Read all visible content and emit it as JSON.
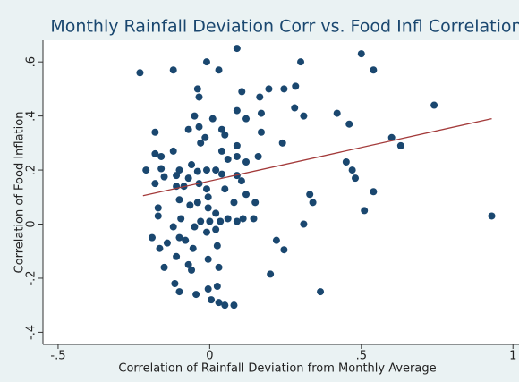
{
  "chart_data": {
    "type": "scatter",
    "title": "Monthly Rainfall Deviation Corr vs. Food Infl Correlation",
    "x_label": "Correlation of Rainfall Deviation from Monthly Average",
    "y_label": "Correlation of Food Inflation",
    "color": "#1a476f",
    "x": [
      -0.23,
      0.09,
      -0.01,
      0.03,
      -0.12,
      0.3,
      0.5,
      0.54,
      0.74,
      -0.04,
      -0.035,
      0.106,
      0.165,
      0.195,
      0.245,
      0.283,
      0.28,
      0.31,
      0.12,
      -0.05,
      0.01,
      0.04,
      0.09,
      -0.035,
      -0.015,
      -0.07,
      0.05,
      -0.18,
      0.17,
      0.24,
      0.42,
      0.46,
      0.6,
      0.63,
      0.33,
      0.34,
      0.45,
      0.47,
      0.48,
      0.51,
      0.54,
      0.93,
      -0.12,
      -0.03,
      0.04,
      0.09,
      0.09,
      0.12,
      0.16,
      0.06,
      -0.06,
      -0.01,
      0.02,
      -0.04,
      -0.07,
      -0.11,
      -0.15,
      -0.21,
      -0.16,
      -0.16,
      -0.18,
      -0.11,
      -0.085,
      -0.035,
      0.04,
      0.09,
      0.105,
      0.05,
      -0.01,
      -0.04,
      -0.005,
      -0.005,
      -0.065,
      -0.1,
      0.02,
      0.06,
      0.09,
      0.11,
      0.145,
      0.08,
      0.12,
      0.15,
      -0.03,
      0.0,
      0.035,
      -0.01,
      0.02,
      -0.17,
      -0.17,
      -0.095,
      -0.05,
      -0.19,
      -0.12,
      -0.1,
      -0.14,
      -0.165,
      -0.08,
      -0.055,
      0.025,
      -0.005,
      0.03,
      -0.07,
      -0.06,
      -0.15,
      -0.11,
      0.22,
      0.245,
      0.31,
      0.2,
      0.365,
      -0.115,
      -0.1,
      -0.005,
      0.025,
      -0.045,
      0.005,
      0.03,
      0.05,
      0.08,
      -0.18,
      0.17,
      -0.1
    ],
    "values": [
      0.56,
      0.65,
      0.6,
      0.57,
      0.57,
      0.6,
      0.63,
      0.57,
      0.44,
      0.5,
      0.47,
      0.49,
      0.47,
      0.5,
      0.5,
      0.51,
      0.43,
      0.4,
      0.39,
      0.4,
      0.39,
      0.35,
      0.42,
      0.36,
      0.32,
      0.35,
      0.33,
      0.34,
      0.34,
      0.3,
      0.41,
      0.37,
      0.32,
      0.29,
      0.11,
      0.08,
      0.23,
      0.2,
      0.17,
      0.05,
      0.12,
      0.03,
      0.27,
      0.3,
      0.27,
      0.29,
      0.25,
      0.23,
      0.25,
      0.24,
      0.22,
      0.2,
      0.2,
      0.195,
      0.17,
      0.18,
      0.175,
      0.2,
      0.25,
      0.205,
      0.15,
      0.14,
      0.14,
      0.15,
      0.185,
      0.18,
      0.16,
      0.13,
      0.13,
      0.08,
      0.1,
      0.06,
      0.07,
      0.09,
      0.04,
      0.02,
      0.01,
      0.02,
      0.02,
      0.08,
      0.11,
      0.08,
      0.01,
      0.01,
      0.01,
      -0.03,
      -0.02,
      0.06,
      0.03,
      0.02,
      -0.01,
      -0.05,
      -0.01,
      -0.05,
      -0.07,
      -0.09,
      -0.06,
      -0.09,
      -0.08,
      -0.13,
      -0.16,
      -0.15,
      -0.17,
      -0.16,
      -0.12,
      -0.06,
      -0.095,
      0.0,
      -0.185,
      -0.25,
      -0.22,
      -0.25,
      -0.24,
      -0.23,
      -0.26,
      -0.28,
      -0.29,
      -0.3,
      -0.3,
      0.26,
      0.41,
      0.2
    ],
    "fit": {
      "x": [
        -0.22,
        0.93
      ],
      "values": [
        0.105,
        0.39
      ],
      "color": "#a33a3a"
    },
    "xlim": [
      -0.55,
      1.02
    ],
    "ylim": [
      -0.445,
      0.68
    ],
    "xticks": [
      {
        "value": -0.5,
        "label": "-.5"
      },
      0,
      {
        "value": 0.5,
        "label": ".5"
      },
      1
    ],
    "yticks": [
      {
        "value": -0.4,
        "label": "-.4"
      },
      {
        "value": -0.2,
        "label": "-.2"
      },
      0,
      {
        "value": 0.2,
        "label": ".2"
      },
      {
        "value": 0.4,
        "label": ".4"
      },
      {
        "value": 0.6,
        "label": ".6"
      }
    ]
  }
}
